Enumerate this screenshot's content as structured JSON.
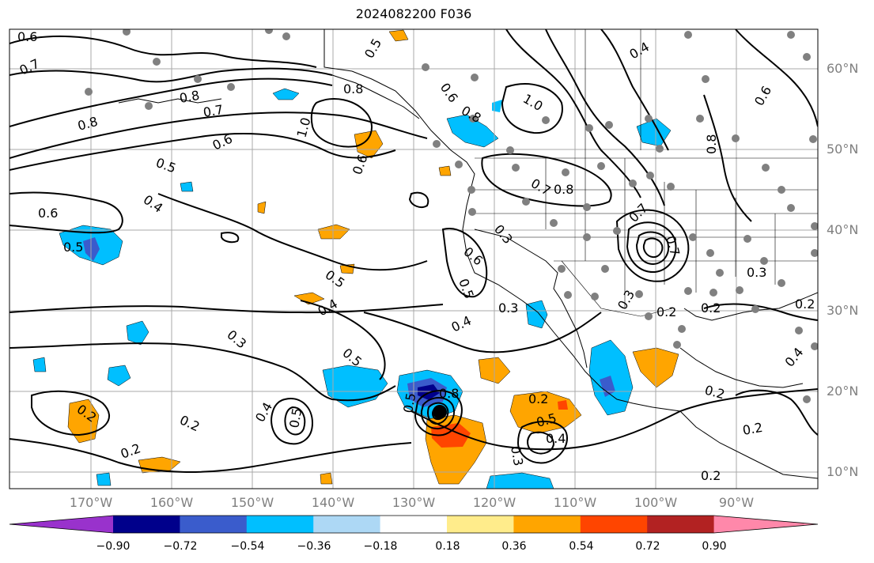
{
  "title": "2024082200 F036",
  "lat_labels": [
    "60°N",
    "50°N",
    "40°N",
    "30°N",
    "20°N",
    "10°N"
  ],
  "lon_labels": [
    "170°W",
    "160°W",
    "150°W",
    "140°W",
    "130°W",
    "120°W",
    "110°W",
    "100°W",
    "90°W"
  ],
  "colorbar": {
    "tick_labels": [
      "−0.90",
      "−0.72",
      "−0.54",
      "−0.36",
      "−0.18",
      "0.18",
      "0.36",
      "0.54",
      "0.72",
      "0.90"
    ],
    "colors": [
      "#9932cc",
      "#00008b",
      "#3a5ccc",
      "#00bfff",
      "#add8f5",
      "#ffffff",
      "#ffec8b",
      "#ffa500",
      "#ff4500",
      "#b22222",
      "#ff88aa"
    ]
  },
  "contour_labels": [
    "0.6",
    "0.7",
    "0.8",
    "0.5",
    "0.6",
    "0.4",
    "0.8",
    "0.7",
    "0.8",
    "0.6",
    "1.0",
    "0.5",
    "0.6",
    "0.6",
    "0.8",
    "1.0",
    "0.3",
    "0.4",
    "0.5",
    "0.7",
    "0.8",
    "0.7",
    "0.8",
    "0.6",
    "0.5",
    "0.3",
    "0.6",
    "0.7",
    "0.5",
    "0.4",
    "0.3",
    "0.5",
    "0.3",
    "0.4",
    "0.5",
    "0.2",
    "0.2",
    "0.2",
    "0.4",
    "0.5",
    "0.2",
    "0.4",
    "0.3",
    "0.2",
    "0.2",
    "0.2",
    "0.2",
    "0.3",
    "0.2",
    "0.2",
    "0.4",
    "0.8",
    "0.5"
  ]
}
